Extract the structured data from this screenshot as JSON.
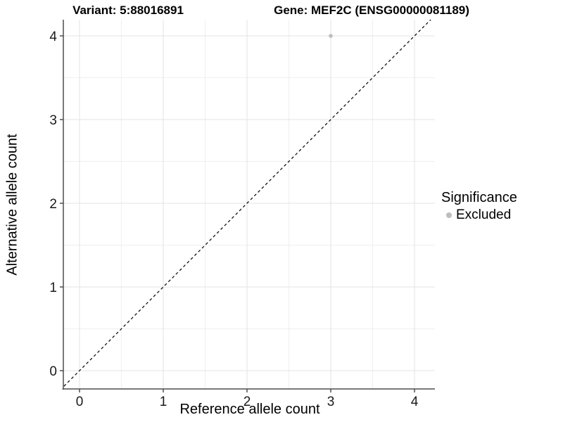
{
  "chart_data": {
    "type": "scatter",
    "titles": {
      "left": "Variant: 5:88016891",
      "right": "Gene: MEF2C (ENSG00000081189)"
    },
    "xlabel": "Reference allele count",
    "ylabel": "Alternative allele count",
    "x_ticks": [
      0,
      1,
      2,
      3,
      4
    ],
    "y_ticks": [
      0,
      1,
      2,
      3,
      4
    ],
    "xlim": [
      -0.22,
      4.25
    ],
    "ylim": [
      -0.22,
      4.19
    ],
    "minor_grid_step": 0.5,
    "grid": true,
    "identity_line": {
      "style": "dashed",
      "equation": "y = x",
      "color": "#000000"
    },
    "points": [
      {
        "x": 3,
        "y": 4,
        "significance": "Excluded",
        "color": "#bdbdbd"
      }
    ],
    "legend": {
      "title": "Significance",
      "position": "right",
      "items": [
        {
          "label": "Excluded",
          "color": "#bdbdbd"
        }
      ]
    },
    "colors": {
      "grid_major": "#e3e3e3",
      "grid_minor": "#efefef",
      "axis_line": "#4d4d4d",
      "tick_label": "#1a1a1a",
      "panel_background": "#ffffff"
    }
  }
}
